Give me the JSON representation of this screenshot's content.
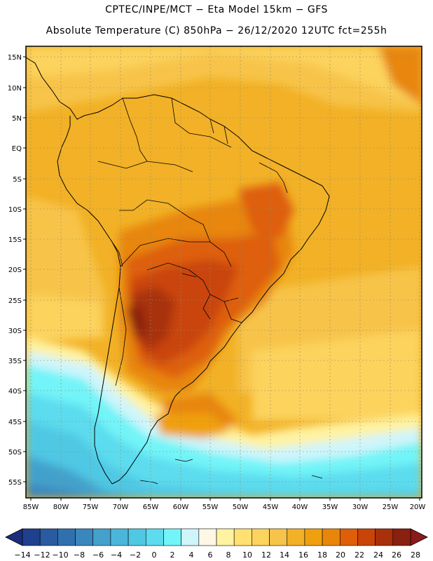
{
  "header": {
    "line1": "CPTEC/INPE/MCT −  Eta Model 15km − GFS",
    "line2": "Absolute Temperature (C) 850hPa − 26/12/2020 12UTC fct=255h"
  },
  "map": {
    "lat_labels": [
      "15N",
      "10N",
      "5N",
      "EQ",
      "5S",
      "10S",
      "15S",
      "20S",
      "25S",
      "30S",
      "35S",
      "40S",
      "45S",
      "50S",
      "55S"
    ],
    "lon_labels": [
      "85W",
      "80W",
      "75W",
      "70W",
      "65W",
      "60W",
      "55W",
      "50W",
      "45W",
      "40W",
      "35W",
      "30W",
      "25W",
      "20W"
    ]
  },
  "colorbar": {
    "labels": [
      "−14",
      "−12",
      "−10",
      "−8",
      "−6",
      "−4",
      "−2",
      "0",
      "2",
      "4",
      "6",
      "8",
      "10",
      "12",
      "14",
      "16",
      "18",
      "20",
      "22",
      "24",
      "26",
      "28"
    ],
    "colors": [
      "#1f3f8f",
      "#2a5aa0",
      "#3170ae",
      "#3a87bd",
      "#43a1cc",
      "#4bb6d9",
      "#4fc8e4",
      "#5cdcee",
      "#72f4f8",
      "#cff5fb",
      "#fff7e6",
      "#fff2a0",
      "#ffe070",
      "#fcd35d",
      "#f7c44a",
      "#f2b126",
      "#f0a00f",
      "#e8860c",
      "#de5e0a",
      "#c94407",
      "#a8300a",
      "#8a2010"
    ],
    "low_arrow_color": "#1a2d7a",
    "high_arrow_color": "#8b1a1a"
  }
}
